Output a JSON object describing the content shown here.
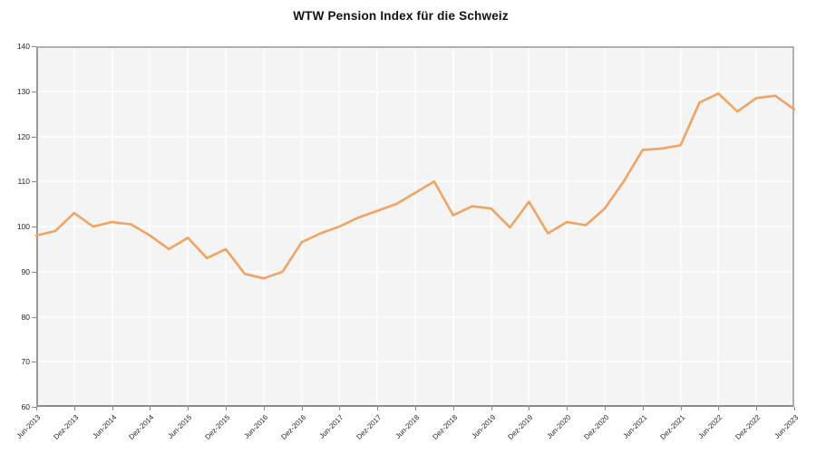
{
  "title": "WTW Pension Index für die Schweiz",
  "colors": {
    "line": "#EEA464",
    "plot_background": "#f4f4f4",
    "gridline": "#fcfcfc",
    "axis_border": "#9a9a9a",
    "tick_label": "#222222",
    "title_text": "#111111"
  },
  "chart_data": {
    "type": "line",
    "title": "WTW Pension Index für die Schweiz",
    "xlabel": "",
    "ylabel": "",
    "ylim": [
      60,
      140
    ],
    "y_ticks": [
      60,
      70,
      80,
      90,
      100,
      110,
      120,
      130,
      140
    ],
    "grid": true,
    "legend": "none",
    "x_tick_labels": [
      "Jun-2013",
      "Dez-2013",
      "Jun-2014",
      "Dez-2014",
      "Jun-2015",
      "Dez-2015",
      "Jun-2016",
      "Dez-2016",
      "Jun-2017",
      "Dez-2017",
      "Jun-2018",
      "Dez-2018",
      "Jun-2019",
      "Dez-2019",
      "Jun-2020",
      "Dez-2020",
      "Jun-2021",
      "Dez-2021",
      "Jun-2022",
      "Dez-2022",
      "Jun-2023"
    ],
    "x": [
      "Jun-2013",
      "Sep-2013",
      "Dez-2013",
      "Mär-2014",
      "Jun-2014",
      "Sep-2014",
      "Dez-2014",
      "Mär-2015",
      "Jun-2015",
      "Sep-2015",
      "Dez-2015",
      "Mär-2016",
      "Jun-2016",
      "Sep-2016",
      "Dez-2016",
      "Mär-2017",
      "Jun-2017",
      "Sep-2017",
      "Dez-2017",
      "Mär-2018",
      "Jun-2018",
      "Sep-2018",
      "Dez-2018",
      "Mär-2019",
      "Jun-2019",
      "Sep-2019",
      "Dez-2019",
      "Mär-2020",
      "Jun-2020",
      "Sep-2020",
      "Dez-2020",
      "Mär-2021",
      "Jun-2021",
      "Sep-2021",
      "Dez-2021",
      "Mär-2022",
      "Jun-2022",
      "Sep-2022",
      "Dez-2022",
      "Mär-2023",
      "Jun-2023"
    ],
    "values": [
      98,
      99,
      103,
      100,
      101,
      100.5,
      98,
      95,
      97.5,
      93,
      95,
      89.5,
      88.5,
      90,
      96.5,
      98.5,
      100,
      102,
      103.5,
      105,
      107.5,
      110,
      102.5,
      104.5,
      104,
      99.8,
      105.5,
      98.5,
      101,
      100.3,
      104,
      110,
      117,
      117.3,
      118,
      127.5,
      129.5,
      125.5,
      128.5,
      129,
      126
    ]
  }
}
